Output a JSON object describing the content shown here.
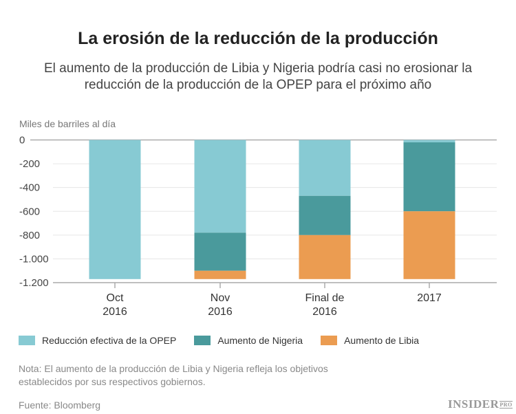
{
  "header": {
    "title": "La erosión de la reducción de la producción",
    "subtitle": "El aumento de la producción de Libia y Nigeria podría casi no erosionar la reducción de la producción de la OPEP para el próximo año"
  },
  "chart_data": {
    "type": "bar",
    "stacked": true,
    "ylabel": "Miles de barriles al día",
    "ylim": [
      -1200,
      0
    ],
    "yticks": [
      0,
      -200,
      -400,
      -600,
      -800,
      -1000,
      -1200
    ],
    "ytick_labels": [
      "0",
      "-200",
      "-400",
      "-600",
      "-800",
      "-1.000",
      "-1.200"
    ],
    "categories": [
      [
        "Oct",
        "2016"
      ],
      [
        "Nov",
        "2016"
      ],
      [
        "Final de",
        "2016"
      ],
      [
        "2017"
      ]
    ],
    "grid": true,
    "legend_position": "bottom",
    "series": [
      {
        "name": "Reducción efectiva de la OPEP",
        "color": "#87cad3",
        "values": [
          -1170,
          -780,
          -470,
          -20
        ]
      },
      {
        "name": "Aumento de Nigeria",
        "color": "#4a9a9c",
        "values": [
          0,
          -320,
          -330,
          -580
        ]
      },
      {
        "name": "Aumento de Libia",
        "color": "#eb9c51",
        "values": [
          0,
          -70,
          -370,
          -570
        ]
      }
    ]
  },
  "footer": {
    "note": "Nota: El aumento de la producción de Libia y Nigeria refleja los objetivos establecidos por sus respectivos gobiernos.",
    "source": "Fuente: Bloomberg",
    "logo": "INSIDER PRO"
  }
}
